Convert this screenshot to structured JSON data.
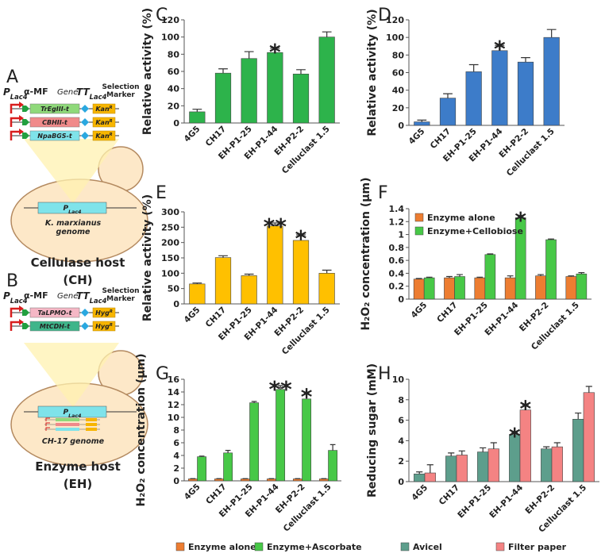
{
  "diagrams": [
    {
      "letter": "A",
      "promoter": {
        "main": "P",
        "sub": "Lac4"
      },
      "signal": "α-MF",
      "gene": "Gene",
      "terminator": {
        "main": "TT",
        "sub": "Lac4"
      },
      "marker": [
        "Selection",
        "Marker"
      ],
      "constructs": [
        {
          "gene": "TrEgIII-t",
          "color": "#8fd97a",
          "marker": {
            "main": "Kan",
            "sup": "R"
          }
        },
        {
          "gene": "CBHII-t",
          "color": "#f08a8a",
          "marker": {
            "main": "Kan",
            "sup": "R"
          }
        },
        {
          "gene": "NpaBGS-t",
          "color": "#7fe3ea",
          "marker": {
            "main": "Kan",
            "sup": "R"
          }
        }
      ],
      "genome_promoter": {
        "main": "P",
        "sub": "Lac4"
      },
      "genome": [
        "K. marxianus",
        "genome"
      ],
      "host": [
        "Cellulase host",
        "(CH)"
      ]
    },
    {
      "letter": "B",
      "promoter": {
        "main": "P",
        "sub": "Lac4"
      },
      "signal": "α-MF",
      "gene": "Gene",
      "terminator": {
        "main": "TT",
        "sub": "Lac4"
      },
      "marker": [
        "Selection",
        "Marker"
      ],
      "constructs": [
        {
          "gene": "TaLPMO-t",
          "color": "#f5b7c5",
          "marker": {
            "main": "Hyg",
            "sup": "R"
          }
        },
        {
          "gene": "MtCDH-t",
          "color": "#3fb58a",
          "marker": {
            "main": "Hyg",
            "sup": "R"
          }
        }
      ],
      "genome_promoter": {
        "main": "P",
        "sub": "Lac4"
      },
      "genome": [
        "CH-17 genome"
      ],
      "host": [
        "Enzyme host",
        "(EH)"
      ]
    }
  ],
  "chart_data": [
    {
      "type": "bar",
      "panel": "C",
      "ylabel": "Relative activity (%)",
      "categories": [
        "4G5",
        "CH17",
        "EH-P1-25",
        "EH-P1-44",
        "EH-P2-2",
        "Celluclast 1.5"
      ],
      "values": [
        13,
        58,
        75,
        82,
        57,
        100
      ],
      "errors": [
        3,
        5,
        8,
        5,
        5,
        6
      ],
      "color": "#2db34b",
      "ylim": [
        0,
        120
      ],
      "yticks": [
        0,
        20,
        40,
        60,
        80,
        100,
        120
      ],
      "annotations": [
        {
          "text": "*",
          "category": "EH-P1-44"
        }
      ]
    },
    {
      "type": "bar",
      "panel": "D",
      "ylabel": "Relative activity (%)",
      "categories": [
        "4G5",
        "CH17",
        "EH-P1-25",
        "EH-P1-44",
        "EH-P2-2",
        "Celluclast 1.5"
      ],
      "values": [
        4,
        31,
        61,
        85,
        72,
        100
      ],
      "errors": [
        2,
        5,
        8,
        6,
        5,
        9
      ],
      "color": "#3d7cc9",
      "ylim": [
        0,
        120
      ],
      "yticks": [
        0,
        20,
        40,
        60,
        80,
        100,
        120
      ],
      "annotations": [
        {
          "text": "*",
          "category": "EH-P1-44"
        }
      ]
    },
    {
      "type": "bar",
      "panel": "E",
      "ylabel": "Relative activity (%)",
      "categories": [
        "4G5",
        "CH17",
        "EH-P1-25",
        "EH-P1-44",
        "EH-P2-2",
        "Celluclast 1.5"
      ],
      "values": [
        65,
        151,
        92,
        254,
        207,
        100
      ],
      "errors": [
        3,
        6,
        5,
        10,
        18,
        10
      ],
      "color": "#ffc000",
      "ylim": [
        0,
        300
      ],
      "yticks": [
        0,
        50,
        100,
        150,
        200,
        250,
        300
      ],
      "annotations": [
        {
          "text": "**",
          "category": "EH-P1-44"
        },
        {
          "text": "*",
          "category": "EH-P2-2"
        }
      ]
    },
    {
      "type": "grouped-bar",
      "panel": "F",
      "ylabel": "H₂O₂ concentration (µm)",
      "categories": [
        "4G5",
        "CH17",
        "EH-P1-25",
        "EH-P1-44",
        "EH-P2-2",
        "Celluclast 1.5"
      ],
      "series": [
        {
          "name": "Enzyme alone",
          "color": "#ed7d31",
          "values": [
            0.31,
            0.33,
            0.33,
            0.33,
            0.36,
            0.35
          ],
          "errors": [
            0.01,
            0.02,
            0.01,
            0.03,
            0.02,
            0.01
          ]
        },
        {
          "name": "Enzyme+Cellobiose",
          "color": "#47c847",
          "values": [
            0.33,
            0.35,
            0.69,
            1.26,
            0.92,
            0.39
          ],
          "errors": [
            0.01,
            0.03,
            0.01,
            0.02,
            0.01,
            0.02
          ]
        }
      ],
      "ylim": [
        0,
        1.4
      ],
      "yticks": [
        0,
        0.2,
        0.4,
        0.6,
        0.8,
        1,
        1.2,
        1.4
      ],
      "legend": "top-left",
      "annotations": [
        {
          "text": "*",
          "category": "EH-P1-44",
          "series": "Enzyme+Cellobiose"
        }
      ]
    },
    {
      "type": "grouped-bar",
      "panel": "G",
      "ylabel": "H₂O₂ concentration (µm)",
      "categories": [
        "4G5",
        "CH17",
        "EH-P1-25",
        "EH-P1-44",
        "EH-P2-2",
        "Celluclast 1.5"
      ],
      "series": [
        {
          "name": "Enzyme alone",
          "color": "#ed7d31",
          "values": [
            0.3,
            0.3,
            0.3,
            0.3,
            0.3,
            0.3
          ],
          "errors": [
            0.05,
            0.05,
            0.05,
            0.05,
            0.05,
            0.05
          ]
        },
        {
          "name": "Enzyme+Ascorbate",
          "color": "#47c847",
          "values": [
            3.8,
            4.4,
            12.3,
            14.4,
            12.9,
            4.8
          ],
          "errors": [
            0.1,
            0.4,
            0.2,
            0.6,
            0.9,
            0.9
          ]
        }
      ],
      "ylim": [
        0,
        16
      ],
      "yticks": [
        0,
        2,
        4,
        6,
        8,
        10,
        12,
        14,
        16
      ],
      "legend": "bottom",
      "annotations": [
        {
          "text": "**",
          "category": "EH-P1-44",
          "series": "Enzyme+Ascorbate"
        },
        {
          "text": "*",
          "category": "EH-P2-2",
          "series": "Enzyme+Ascorbate"
        }
      ]
    },
    {
      "type": "grouped-bar",
      "panel": "H",
      "ylabel": "Reducing sugar  (mM)",
      "categories": [
        "4G5",
        "CH17",
        "EH-P1-25",
        "EH-P1-44",
        "EH-P2-2",
        "Celluclast 1.5"
      ],
      "series": [
        {
          "name": "Avicel",
          "color": "#5d9e8c",
          "values": [
            0.75,
            2.5,
            2.9,
            4.6,
            3.2,
            6.1
          ],
          "errors": [
            0.2,
            0.3,
            0.4,
            0.2,
            0.2,
            0.6
          ]
        },
        {
          "name": "Filter paper",
          "color": "#f48383",
          "values": [
            0.85,
            2.6,
            3.2,
            7.0,
            3.4,
            8.7
          ],
          "errors": [
            0.8,
            0.4,
            0.6,
            0.5,
            0.4,
            0.6
          ]
        }
      ],
      "ylim": [
        0,
        10
      ],
      "yticks": [
        0,
        2,
        4,
        6,
        8,
        10
      ],
      "legend": "bottom",
      "annotations": [
        {
          "text": "*",
          "category": "EH-P1-44",
          "series": "Avicel"
        },
        {
          "text": "*",
          "category": "EH-P1-44",
          "series": "Filter paper"
        }
      ]
    }
  ]
}
